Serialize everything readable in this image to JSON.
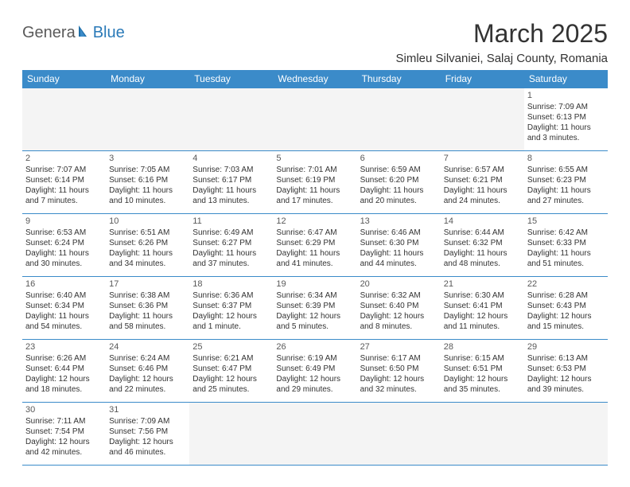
{
  "logo": {
    "text1": "Genera",
    "text2": "Blue"
  },
  "title": "March 2025",
  "location": "Simleu Silvaniei, Salaj County, Romania",
  "style": {
    "header_bg": "#3b8bc9",
    "header_fg": "#ffffff",
    "border_color": "#3b8bc9",
    "empty_bg": "#f4f4f4",
    "title_color": "#333333",
    "body_text_color": "#333333",
    "daynum_color": "#595959",
    "month_fontsize": 32,
    "location_fontsize": 15,
    "weekday_fontsize": 12,
    "cell_fontsize": 10
  },
  "weekdays": [
    "Sunday",
    "Monday",
    "Tuesday",
    "Wednesday",
    "Thursday",
    "Friday",
    "Saturday"
  ],
  "weeks": [
    [
      null,
      null,
      null,
      null,
      null,
      null,
      {
        "d": "1",
        "sr": "Sunrise: 7:09 AM",
        "ss": "Sunset: 6:13 PM",
        "dl1": "Daylight: 11 hours",
        "dl2": "and 3 minutes."
      }
    ],
    [
      {
        "d": "2",
        "sr": "Sunrise: 7:07 AM",
        "ss": "Sunset: 6:14 PM",
        "dl1": "Daylight: 11 hours",
        "dl2": "and 7 minutes."
      },
      {
        "d": "3",
        "sr": "Sunrise: 7:05 AM",
        "ss": "Sunset: 6:16 PM",
        "dl1": "Daylight: 11 hours",
        "dl2": "and 10 minutes."
      },
      {
        "d": "4",
        "sr": "Sunrise: 7:03 AM",
        "ss": "Sunset: 6:17 PM",
        "dl1": "Daylight: 11 hours",
        "dl2": "and 13 minutes."
      },
      {
        "d": "5",
        "sr": "Sunrise: 7:01 AM",
        "ss": "Sunset: 6:19 PM",
        "dl1": "Daylight: 11 hours",
        "dl2": "and 17 minutes."
      },
      {
        "d": "6",
        "sr": "Sunrise: 6:59 AM",
        "ss": "Sunset: 6:20 PM",
        "dl1": "Daylight: 11 hours",
        "dl2": "and 20 minutes."
      },
      {
        "d": "7",
        "sr": "Sunrise: 6:57 AM",
        "ss": "Sunset: 6:21 PM",
        "dl1": "Daylight: 11 hours",
        "dl2": "and 24 minutes."
      },
      {
        "d": "8",
        "sr": "Sunrise: 6:55 AM",
        "ss": "Sunset: 6:23 PM",
        "dl1": "Daylight: 11 hours",
        "dl2": "and 27 minutes."
      }
    ],
    [
      {
        "d": "9",
        "sr": "Sunrise: 6:53 AM",
        "ss": "Sunset: 6:24 PM",
        "dl1": "Daylight: 11 hours",
        "dl2": "and 30 minutes."
      },
      {
        "d": "10",
        "sr": "Sunrise: 6:51 AM",
        "ss": "Sunset: 6:26 PM",
        "dl1": "Daylight: 11 hours",
        "dl2": "and 34 minutes."
      },
      {
        "d": "11",
        "sr": "Sunrise: 6:49 AM",
        "ss": "Sunset: 6:27 PM",
        "dl1": "Daylight: 11 hours",
        "dl2": "and 37 minutes."
      },
      {
        "d": "12",
        "sr": "Sunrise: 6:47 AM",
        "ss": "Sunset: 6:29 PM",
        "dl1": "Daylight: 11 hours",
        "dl2": "and 41 minutes."
      },
      {
        "d": "13",
        "sr": "Sunrise: 6:46 AM",
        "ss": "Sunset: 6:30 PM",
        "dl1": "Daylight: 11 hours",
        "dl2": "and 44 minutes."
      },
      {
        "d": "14",
        "sr": "Sunrise: 6:44 AM",
        "ss": "Sunset: 6:32 PM",
        "dl1": "Daylight: 11 hours",
        "dl2": "and 48 minutes."
      },
      {
        "d": "15",
        "sr": "Sunrise: 6:42 AM",
        "ss": "Sunset: 6:33 PM",
        "dl1": "Daylight: 11 hours",
        "dl2": "and 51 minutes."
      }
    ],
    [
      {
        "d": "16",
        "sr": "Sunrise: 6:40 AM",
        "ss": "Sunset: 6:34 PM",
        "dl1": "Daylight: 11 hours",
        "dl2": "and 54 minutes."
      },
      {
        "d": "17",
        "sr": "Sunrise: 6:38 AM",
        "ss": "Sunset: 6:36 PM",
        "dl1": "Daylight: 11 hours",
        "dl2": "and 58 minutes."
      },
      {
        "d": "18",
        "sr": "Sunrise: 6:36 AM",
        "ss": "Sunset: 6:37 PM",
        "dl1": "Daylight: 12 hours",
        "dl2": "and 1 minute."
      },
      {
        "d": "19",
        "sr": "Sunrise: 6:34 AM",
        "ss": "Sunset: 6:39 PM",
        "dl1": "Daylight: 12 hours",
        "dl2": "and 5 minutes."
      },
      {
        "d": "20",
        "sr": "Sunrise: 6:32 AM",
        "ss": "Sunset: 6:40 PM",
        "dl1": "Daylight: 12 hours",
        "dl2": "and 8 minutes."
      },
      {
        "d": "21",
        "sr": "Sunrise: 6:30 AM",
        "ss": "Sunset: 6:41 PM",
        "dl1": "Daylight: 12 hours",
        "dl2": "and 11 minutes."
      },
      {
        "d": "22",
        "sr": "Sunrise: 6:28 AM",
        "ss": "Sunset: 6:43 PM",
        "dl1": "Daylight: 12 hours",
        "dl2": "and 15 minutes."
      }
    ],
    [
      {
        "d": "23",
        "sr": "Sunrise: 6:26 AM",
        "ss": "Sunset: 6:44 PM",
        "dl1": "Daylight: 12 hours",
        "dl2": "and 18 minutes."
      },
      {
        "d": "24",
        "sr": "Sunrise: 6:24 AM",
        "ss": "Sunset: 6:46 PM",
        "dl1": "Daylight: 12 hours",
        "dl2": "and 22 minutes."
      },
      {
        "d": "25",
        "sr": "Sunrise: 6:21 AM",
        "ss": "Sunset: 6:47 PM",
        "dl1": "Daylight: 12 hours",
        "dl2": "and 25 minutes."
      },
      {
        "d": "26",
        "sr": "Sunrise: 6:19 AM",
        "ss": "Sunset: 6:49 PM",
        "dl1": "Daylight: 12 hours",
        "dl2": "and 29 minutes."
      },
      {
        "d": "27",
        "sr": "Sunrise: 6:17 AM",
        "ss": "Sunset: 6:50 PM",
        "dl1": "Daylight: 12 hours",
        "dl2": "and 32 minutes."
      },
      {
        "d": "28",
        "sr": "Sunrise: 6:15 AM",
        "ss": "Sunset: 6:51 PM",
        "dl1": "Daylight: 12 hours",
        "dl2": "and 35 minutes."
      },
      {
        "d": "29",
        "sr": "Sunrise: 6:13 AM",
        "ss": "Sunset: 6:53 PM",
        "dl1": "Daylight: 12 hours",
        "dl2": "and 39 minutes."
      }
    ],
    [
      {
        "d": "30",
        "sr": "Sunrise: 7:11 AM",
        "ss": "Sunset: 7:54 PM",
        "dl1": "Daylight: 12 hours",
        "dl2": "and 42 minutes."
      },
      {
        "d": "31",
        "sr": "Sunrise: 7:09 AM",
        "ss": "Sunset: 7:56 PM",
        "dl1": "Daylight: 12 hours",
        "dl2": "and 46 minutes."
      },
      null,
      null,
      null,
      null,
      null
    ]
  ]
}
